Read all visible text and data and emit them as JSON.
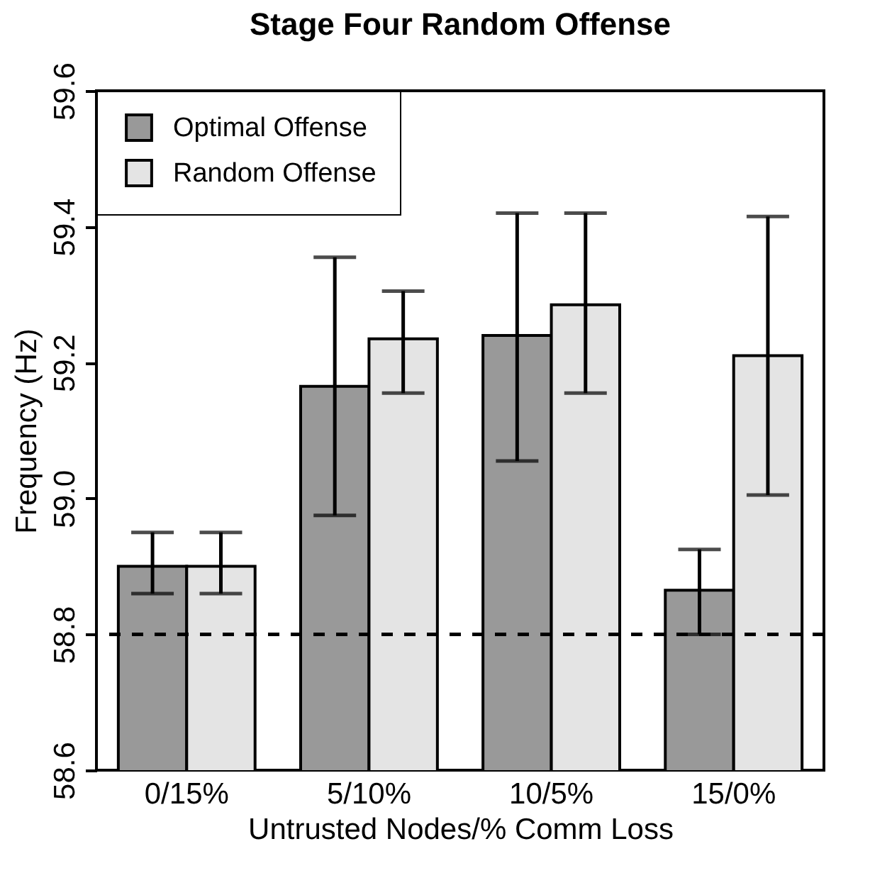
{
  "chart_data": {
    "type": "bar",
    "title": "Stage Four Random Offense",
    "xlabel": "Untrusted Nodes/% Comm Loss",
    "ylabel": "Frequency (Hz)",
    "categories": [
      "0/15%",
      "5/10%",
      "10/5%",
      "15/0%"
    ],
    "series": [
      {
        "name": "Optimal Offense",
        "color": "#999999",
        "values": [
          58.9,
          59.165,
          59.24,
          58.865
        ],
        "errors": [
          [
            58.86,
            58.95
          ],
          [
            58.975,
            59.355
          ],
          [
            59.055,
            59.42
          ],
          [
            58.8,
            58.925
          ]
        ]
      },
      {
        "name": "Random Offense",
        "color": "#e4e4e4",
        "values": [
          58.9,
          59.235,
          59.285,
          59.21
        ],
        "errors": [
          [
            58.86,
            58.95
          ],
          [
            59.155,
            59.305
          ],
          [
            59.155,
            59.42
          ],
          [
            59.005,
            59.415
          ]
        ]
      }
    ],
    "ylim": [
      58.6,
      59.6
    ],
    "yticks": [
      58.6,
      58.8,
      {
        "value": 59,
        "label": "59.0"
      },
      59.2,
      59.4,
      59.6
    ],
    "ref_lines": [
      {
        "axis": "y",
        "value": 58.8,
        "line_style": "dashed"
      }
    ],
    "legend": "top left",
    "grid": false
  }
}
